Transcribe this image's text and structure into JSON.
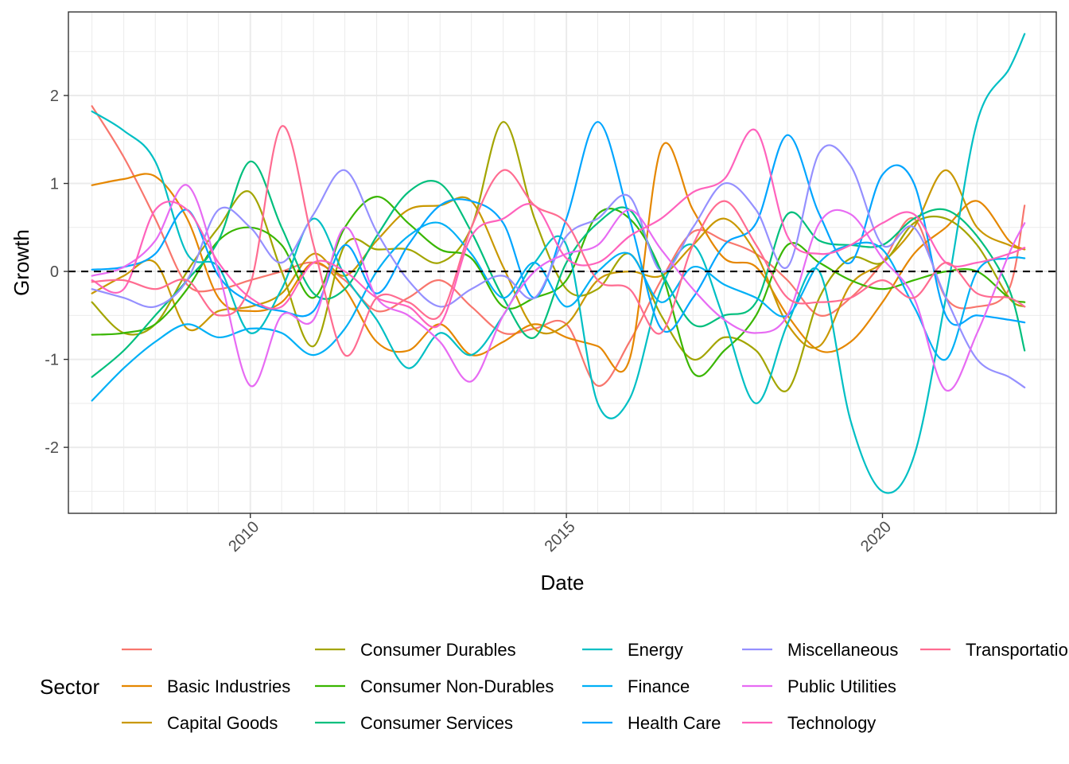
{
  "chart_data": {
    "type": "line",
    "xlabel": "Date",
    "ylabel": "Growth",
    "xlim": [
      "2007-02-15",
      "2022-10-01"
    ],
    "ylim": [
      -2.75,
      2.95
    ],
    "x_ticks": [
      {
        "date": "2010-01-01",
        "label": "2010"
      },
      {
        "date": "2015-01-01",
        "label": "2015"
      },
      {
        "date": "2020-01-01",
        "label": "2020"
      }
    ],
    "y_ticks": [
      {
        "value": 2,
        "label": "2"
      },
      {
        "value": 1,
        "label": "1"
      },
      {
        "value": 0,
        "label": "0"
      },
      {
        "value": -1,
        "label": "-1"
      },
      {
        "value": -2,
        "label": "-2"
      }
    ],
    "reference_line": {
      "value": 0,
      "style": "dashed",
      "color": "#000000"
    },
    "grid": true,
    "legend": {
      "title": "Sector",
      "position": "bottom"
    },
    "x": [
      "2007-07-01",
      "2008-01-01",
      "2008-07-01",
      "2009-01-01",
      "2009-07-01",
      "2010-01-01",
      "2010-07-01",
      "2011-01-01",
      "2011-07-01",
      "2012-01-01",
      "2012-07-01",
      "2013-01-01",
      "2013-07-01",
      "2014-01-01",
      "2014-07-01",
      "2015-01-01",
      "2015-07-01",
      "2016-01-01",
      "2016-07-01",
      "2017-01-01",
      "2017-07-01",
      "2018-01-01",
      "2018-07-01",
      "2019-01-01",
      "2019-07-01",
      "2020-01-01",
      "2020-07-01",
      "2021-01-01",
      "2021-07-01",
      "2022-01-01",
      "2022-04-01"
    ],
    "series": [
      {
        "name": "",
        "color": "#F8766D",
        "values": [
          1.88,
          1.3,
          0.6,
          -0.15,
          -0.2,
          -0.1,
          0.0,
          0.1,
          -0.1,
          -0.45,
          -0.3,
          -0.1,
          -0.4,
          -0.7,
          -0.65,
          -0.6,
          -1.3,
          -0.8,
          -0.1,
          0.45,
          0.35,
          0.2,
          -0.1,
          -0.5,
          -0.3,
          0.1,
          0.6,
          -0.3,
          -0.4,
          -0.2,
          0.75
        ]
      },
      {
        "name": "Basic Industries",
        "color": "#E58700",
        "values": [
          0.98,
          1.05,
          1.08,
          0.6,
          -0.3,
          -0.45,
          -0.35,
          0.1,
          -0.2,
          -0.8,
          -0.9,
          -0.6,
          -0.95,
          -0.8,
          -0.6,
          -0.75,
          -0.85,
          -1.0,
          1.4,
          0.7,
          0.15,
          0.05,
          -0.5,
          -0.9,
          -0.8,
          -0.35,
          0.2,
          0.5,
          0.8,
          0.35,
          0.25
        ]
      },
      {
        "name": "Capital Goods",
        "color": "#C99800",
        "values": [
          -0.25,
          -0.05,
          0.1,
          -0.65,
          -0.45,
          -0.4,
          -0.25,
          0.2,
          -0.05,
          0.35,
          0.7,
          0.75,
          0.8,
          0.05,
          -0.65,
          -0.6,
          -0.1,
          0.0,
          -0.05,
          0.3,
          0.6,
          0.2,
          -0.6,
          -0.85,
          -0.15,
          0.1,
          0.5,
          1.15,
          0.5,
          0.3,
          0.25
        ]
      },
      {
        "name": "Consumer Durables",
        "color": "#A3A500",
        "values": [
          -0.35,
          -0.7,
          -0.6,
          0.0,
          0.5,
          0.9,
          0.0,
          -0.85,
          0.3,
          0.25,
          0.25,
          0.1,
          0.5,
          1.7,
          0.6,
          -0.2,
          -0.2,
          0.2,
          -0.5,
          -1.0,
          -0.75,
          -0.9,
          -1.35,
          -0.3,
          0.15,
          0.1,
          0.55,
          0.6,
          0.3,
          -0.3,
          -0.4
        ]
      },
      {
        "name": "Consumer Non-Durables",
        "color": "#39B600",
        "values": [
          -0.72,
          -0.7,
          -0.6,
          -0.2,
          0.35,
          0.5,
          0.3,
          -0.3,
          0.5,
          0.85,
          0.55,
          0.25,
          0.15,
          -0.4,
          -0.3,
          -0.1,
          0.65,
          0.6,
          0.0,
          -1.15,
          -0.9,
          -0.5,
          0.3,
          0.1,
          -0.1,
          -0.2,
          -0.1,
          0.0,
          0.0,
          -0.3,
          -0.35
        ]
      },
      {
        "name": "Consumer Services",
        "color": "#00BF7D",
        "values": [
          -1.2,
          -0.9,
          -0.5,
          -0.1,
          0.35,
          1.25,
          0.5,
          -0.25,
          -0.2,
          0.4,
          0.9,
          1.0,
          0.45,
          -0.3,
          -0.75,
          0.1,
          0.55,
          0.7,
          0.0,
          -0.6,
          -0.5,
          -0.35,
          0.65,
          0.35,
          0.3,
          0.3,
          0.6,
          0.7,
          0.4,
          -0.2,
          -0.9
        ]
      },
      {
        "name": "Energy",
        "color": "#00BFC4",
        "values": [
          1.82,
          1.6,
          1.25,
          0.2,
          0.05,
          -0.7,
          -0.2,
          0.6,
          -0.05,
          -0.55,
          -1.1,
          -0.7,
          -0.95,
          -0.5,
          0.1,
          0.3,
          -1.5,
          -1.45,
          -0.2,
          0.3,
          -0.55,
          -1.5,
          -0.6,
          0.0,
          -1.7,
          -2.5,
          -2.1,
          -0.3,
          1.7,
          2.3,
          2.7
        ]
      },
      {
        "name": "Finance",
        "color": "#00B0F6",
        "values": [
          -1.47,
          -1.1,
          -0.8,
          -0.6,
          -0.75,
          -0.65,
          -0.7,
          -0.95,
          -0.65,
          0.0,
          0.4,
          0.55,
          0.2,
          -0.3,
          0.1,
          -0.4,
          0.0,
          0.2,
          -0.35,
          0.05,
          -0.15,
          -0.3,
          -0.5,
          0.1,
          0.3,
          0.25,
          -0.4,
          -1.0,
          0.0,
          0.15,
          0.15
        ]
      },
      {
        "name": "Health Care",
        "color": "#00A5FF",
        "values": [
          0.02,
          0.05,
          0.2,
          0.7,
          -0.05,
          -0.35,
          -0.45,
          -0.45,
          0.3,
          -0.25,
          0.3,
          0.75,
          0.8,
          0.55,
          -0.3,
          0.6,
          1.7,
          0.6,
          -0.65,
          -0.3,
          0.3,
          0.55,
          1.55,
          0.65,
          0.1,
          1.1,
          1.0,
          -0.5,
          -0.5,
          -0.55,
          -0.58
        ]
      },
      {
        "name": "Miscellaneous",
        "color": "#9590FF",
        "values": [
          -0.2,
          -0.3,
          -0.4,
          -0.1,
          0.7,
          0.5,
          0.1,
          0.65,
          1.15,
          0.45,
          -0.1,
          -0.4,
          -0.2,
          -0.05,
          -0.3,
          0.4,
          0.6,
          0.85,
          0.0,
          0.5,
          1.0,
          0.7,
          0.05,
          1.35,
          1.2,
          0.3,
          0.5,
          -0.3,
          -1.0,
          -1.2,
          -1.32
        ]
      },
      {
        "name": "Public Utilities",
        "color": "#E76BF3",
        "values": [
          -0.05,
          0.05,
          0.35,
          0.98,
          0.0,
          -1.3,
          -0.5,
          -0.55,
          0.5,
          -0.3,
          -0.5,
          -0.8,
          -1.25,
          -0.5,
          0.0,
          0.2,
          0.3,
          0.7,
          0.25,
          -0.2,
          -0.55,
          -0.7,
          -0.5,
          0.55,
          0.65,
          0.15,
          -0.3,
          -1.35,
          -0.7,
          0.2,
          0.55
        ]
      },
      {
        "name": "Technology",
        "color": "#FF62BC",
        "values": [
          -0.1,
          -0.2,
          0.7,
          0.7,
          0.1,
          -0.3,
          -0.4,
          0.1,
          0.0,
          -0.3,
          -0.4,
          -0.6,
          0.4,
          0.6,
          0.75,
          0.15,
          0.1,
          0.4,
          0.6,
          0.9,
          1.05,
          1.6,
          0.4,
          0.2,
          0.3,
          0.55,
          0.65,
          0.1,
          0.1,
          0.2,
          0.27
        ]
      },
      {
        "name": "Transportation",
        "color": "#FF6C91",
        "values": [
          -0.12,
          -0.1,
          -0.2,
          -0.1,
          -0.5,
          -0.15,
          1.65,
          0.3,
          -0.95,
          -0.3,
          -0.35,
          -0.5,
          0.5,
          1.15,
          0.75,
          0.55,
          -0.1,
          -0.2,
          -0.7,
          0.3,
          0.8,
          0.3,
          -0.3,
          -0.35,
          -0.3,
          -0.1,
          -0.3,
          0.1,
          -0.25,
          -0.3,
          -0.4
        ]
      }
    ]
  }
}
